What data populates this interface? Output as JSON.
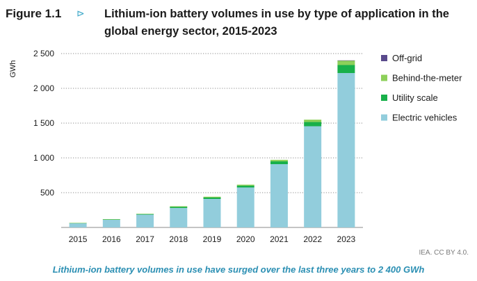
{
  "figure": {
    "label": "Figure 1.1",
    "arrow": "⊳",
    "title": "Lithium-ion battery volumes in use by type of application in the global energy sector, 2015-2023",
    "source": "IEA. CC BY 4.0.",
    "caption": "Lithium-ion battery volumes in use have surged over the last three years to 2 400 GWh"
  },
  "chart_data": {
    "type": "bar",
    "stacked": true,
    "ylabel": "GWh",
    "ylim": [
      0,
      2500
    ],
    "yticks": [
      500,
      1000,
      1500,
      2000,
      2500
    ],
    "ytick_labels": [
      "500",
      "1 000",
      "1 500",
      "2 000",
      "2 500"
    ],
    "grid": "horizontal dotted",
    "categories": [
      "2015",
      "2016",
      "2017",
      "2018",
      "2019",
      "2020",
      "2021",
      "2022",
      "2023"
    ],
    "series": [
      {
        "name": "Electric vehicles",
        "color": "#92cddc",
        "values": [
          60,
          110,
          185,
          280,
          410,
          575,
          910,
          1455,
          2220
        ]
      },
      {
        "name": "Utility scale",
        "color": "#18b04a",
        "values": [
          4,
          6,
          8,
          15,
          20,
          25,
          40,
          60,
          115
        ]
      },
      {
        "name": "Behind-the-meter",
        "color": "#8dd05a",
        "values": [
          2,
          3,
          4,
          10,
          12,
          15,
          22,
          35,
          65
        ]
      },
      {
        "name": "Off-grid",
        "color": "#5a4a8c",
        "values": [
          0,
          0,
          0,
          0,
          0,
          0,
          0,
          0,
          2
        ]
      }
    ],
    "legend_order": [
      "Off-grid",
      "Behind-the-meter",
      "Utility scale",
      "Electric vehicles"
    ],
    "legend_position": "top-right"
  }
}
